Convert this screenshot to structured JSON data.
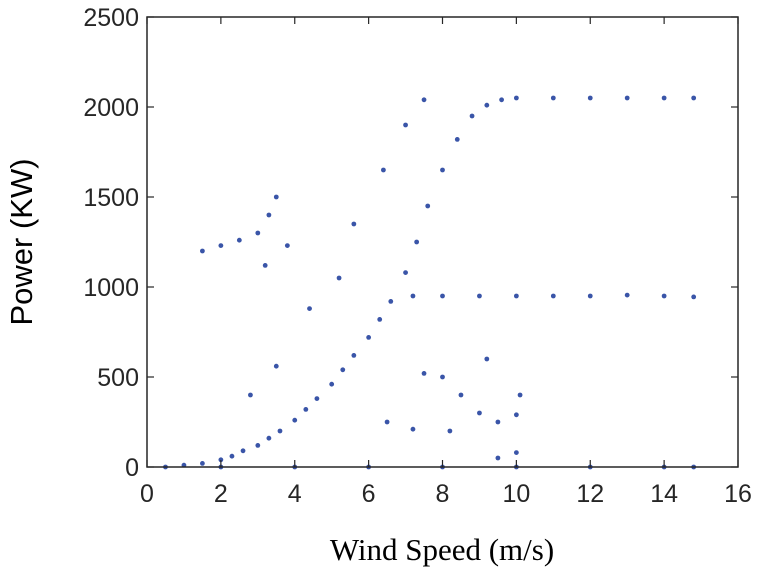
{
  "chart_data": {
    "type": "scatter",
    "title": "",
    "xlabel": "Wind Speed (m/s)",
    "ylabel": "Power (KW)",
    "xlim": [
      0,
      16
    ],
    "ylim": [
      0,
      2500
    ],
    "xticks": [
      0,
      2,
      4,
      6,
      8,
      10,
      12,
      14,
      16
    ],
    "yticks": [
      0,
      500,
      1000,
      1500,
      2000,
      2500
    ],
    "grid": false,
    "legend": "none",
    "marker_color": "#3a55a8",
    "series": [
      {
        "points": [
          [
            1.0,
            10
          ],
          [
            1.5,
            20
          ],
          [
            2.0,
            40
          ],
          [
            2.3,
            60
          ],
          [
            2.6,
            90
          ],
          [
            3.0,
            120
          ],
          [
            3.3,
            160
          ],
          [
            3.6,
            200
          ],
          [
            4.0,
            260
          ],
          [
            4.3,
            320
          ],
          [
            4.6,
            380
          ],
          [
            5.0,
            460
          ],
          [
            5.3,
            540
          ],
          [
            5.6,
            620
          ],
          [
            6.0,
            720
          ],
          [
            6.3,
            820
          ],
          [
            6.6,
            920
          ],
          [
            7.0,
            1080
          ],
          [
            7.3,
            1250
          ],
          [
            7.6,
            1450
          ],
          [
            8.0,
            1650
          ],
          [
            8.4,
            1820
          ],
          [
            8.8,
            1950
          ],
          [
            9.2,
            2010
          ],
          [
            9.6,
            2040
          ],
          [
            10.0,
            2050
          ],
          [
            11.0,
            2050
          ],
          [
            12.0,
            2050
          ],
          [
            13.0,
            2050
          ],
          [
            14.0,
            2050
          ],
          [
            14.8,
            2050
          ],
          [
            7.2,
            950
          ],
          [
            8.0,
            950
          ],
          [
            9.0,
            950
          ],
          [
            10.0,
            950
          ],
          [
            11.0,
            950
          ],
          [
            12.0,
            950
          ],
          [
            13.0,
            955
          ],
          [
            14.0,
            950
          ],
          [
            14.8,
            945
          ],
          [
            1.5,
            1200
          ],
          [
            2.0,
            1230
          ],
          [
            2.5,
            1260
          ],
          [
            3.0,
            1300
          ],
          [
            3.3,
            1400
          ],
          [
            3.5,
            1500
          ],
          [
            3.2,
            1120
          ],
          [
            3.8,
            1230
          ],
          [
            2.8,
            400
          ],
          [
            3.5,
            560
          ],
          [
            4.4,
            880
          ],
          [
            5.2,
            1050
          ],
          [
            5.6,
            1350
          ],
          [
            6.4,
            1650
          ],
          [
            7.0,
            1900
          ],
          [
            7.5,
            2040
          ],
          [
            8.0,
            500
          ],
          [
            8.5,
            400
          ],
          [
            9.0,
            300
          ],
          [
            9.5,
            250
          ],
          [
            10.0,
            290
          ],
          [
            8.2,
            200
          ],
          [
            7.5,
            520
          ],
          [
            9.2,
            600
          ],
          [
            10.1,
            400
          ],
          [
            6.5,
            250
          ],
          [
            7.2,
            210
          ],
          [
            0.5,
            0
          ],
          [
            2.0,
            0
          ],
          [
            4.0,
            0
          ],
          [
            6.0,
            0
          ],
          [
            8.0,
            0
          ],
          [
            10.0,
            0
          ],
          [
            12.0,
            0
          ],
          [
            14.0,
            0
          ],
          [
            14.8,
            0
          ],
          [
            9.5,
            50
          ],
          [
            10.0,
            80
          ]
        ]
      }
    ]
  }
}
